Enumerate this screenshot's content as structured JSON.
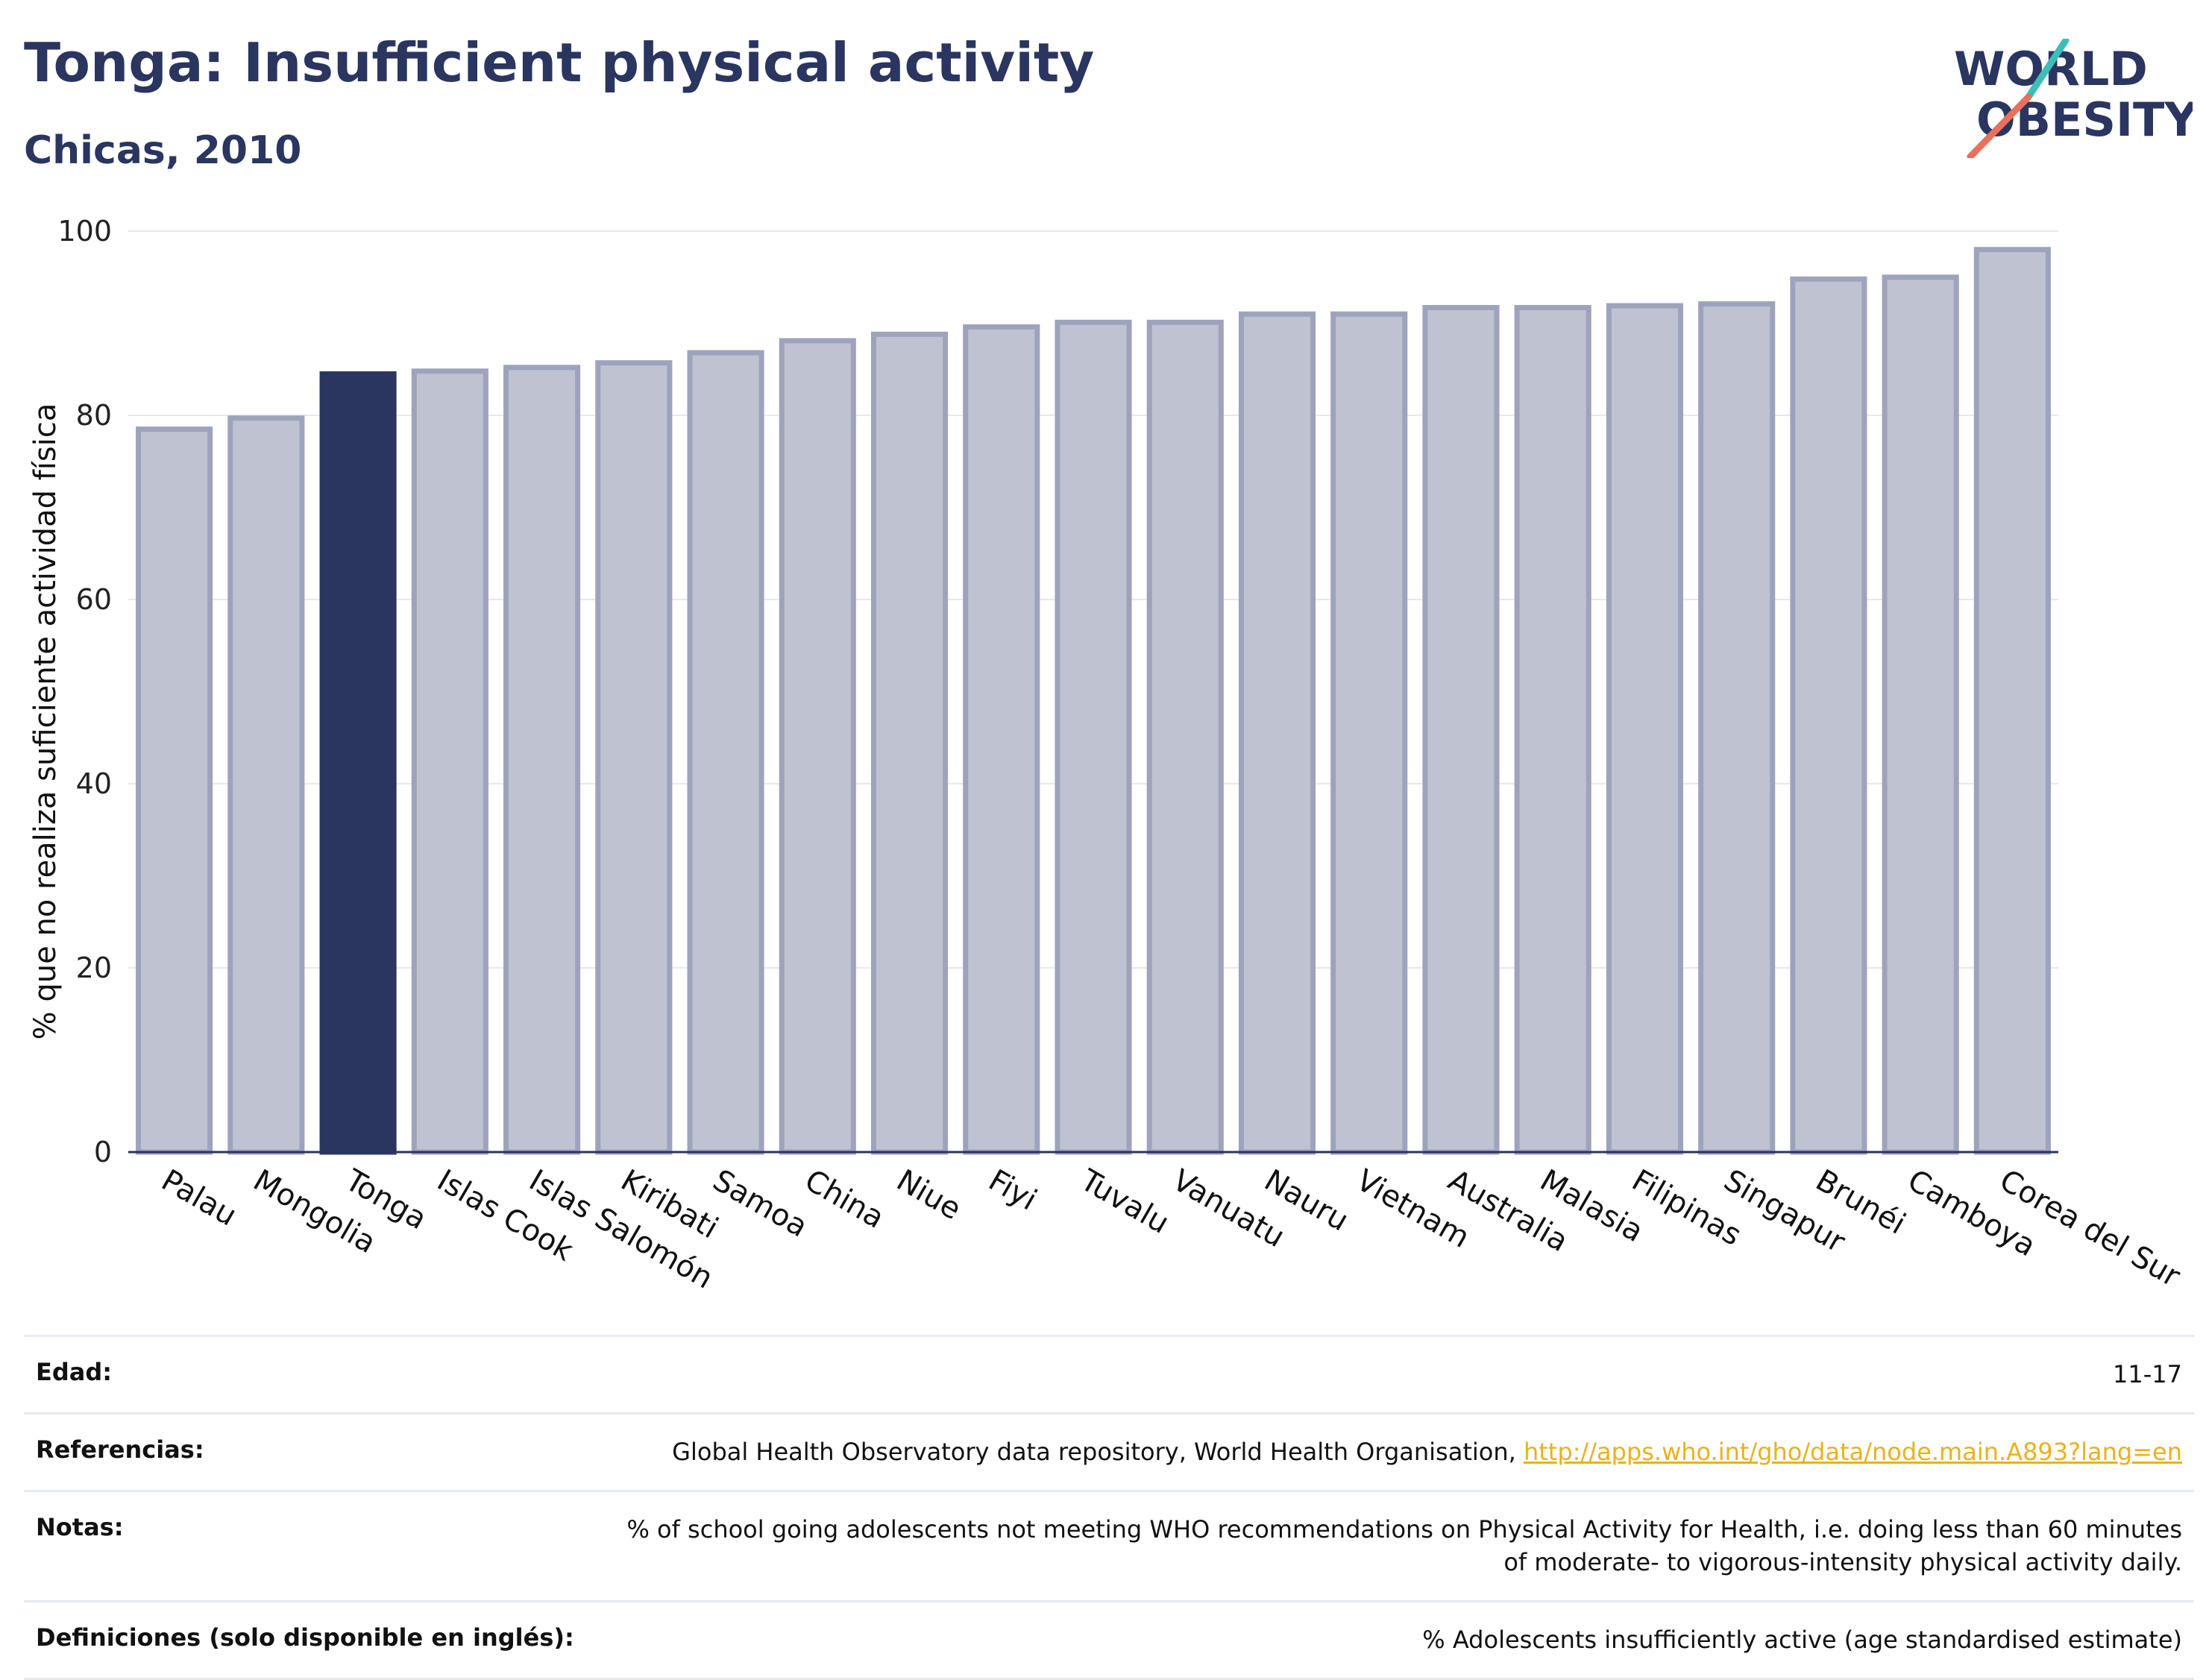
{
  "header": {
    "title": "Tonga: Insufficient physical activity",
    "subtitle": "Chicas, 2010"
  },
  "logo": {
    "line1": "WORLD",
    "line2": "OBESITY",
    "accent_teal": "#3dbdb8",
    "accent_coral": "#e8705c"
  },
  "colors": {
    "highlight_bar": "#2a3560",
    "other_bar": "#bfc2d0",
    "other_bar_border": "#9ea3bd",
    "grid": "#e6e8ee"
  },
  "chart_data": {
    "type": "bar",
    "title": "Tonga: Insufficient physical activity",
    "subtitle": "Chicas, 2010",
    "xlabel": "",
    "ylabel": "% que no realiza suficiente actividad física",
    "ylim": [
      0,
      100
    ],
    "yticks": [
      0,
      20,
      40,
      60,
      80,
      100
    ],
    "grid": true,
    "highlight": "Tonga",
    "categories": [
      "Palau",
      "Mongolia",
      "Tonga",
      "Islas Cook",
      "Islas Salomón",
      "Kiribati",
      "Samoa",
      "China",
      "Niue",
      "Fiyi",
      "Tuvalu",
      "Vanuatu",
      "Nauru",
      "Vietnam",
      "Australia",
      "Malasia",
      "Filipinas",
      "Singapur",
      "Brunéi",
      "Camboya",
      "Corea del Sur"
    ],
    "values": [
      78.5,
      79.7,
      84.5,
      84.8,
      85.2,
      85.7,
      86.8,
      88.1,
      88.8,
      89.6,
      90.1,
      90.1,
      91.0,
      91.0,
      91.7,
      91.7,
      91.9,
      92.1,
      94.8,
      95.0,
      98.0
    ]
  },
  "meta": {
    "rows": [
      {
        "key": "Edad:",
        "value": "11-17"
      },
      {
        "key": "Referencias:",
        "value": "Global Health Observatory data repository, World Health Organisation, ",
        "link": "http://apps.who.int/gho/data/node.main.A893?lang=en"
      },
      {
        "key": "Notas:",
        "value": "% of school going adolescents not meeting WHO recommendations on Physical Activity for Health, i.e. doing less than 60 minutes of moderate- to vigorous-intensity physical activity daily."
      },
      {
        "key": "Definiciones (solo disponible en inglés):",
        "value": "% Adolescents insufficiently active (age standardised estimate)"
      }
    ]
  }
}
